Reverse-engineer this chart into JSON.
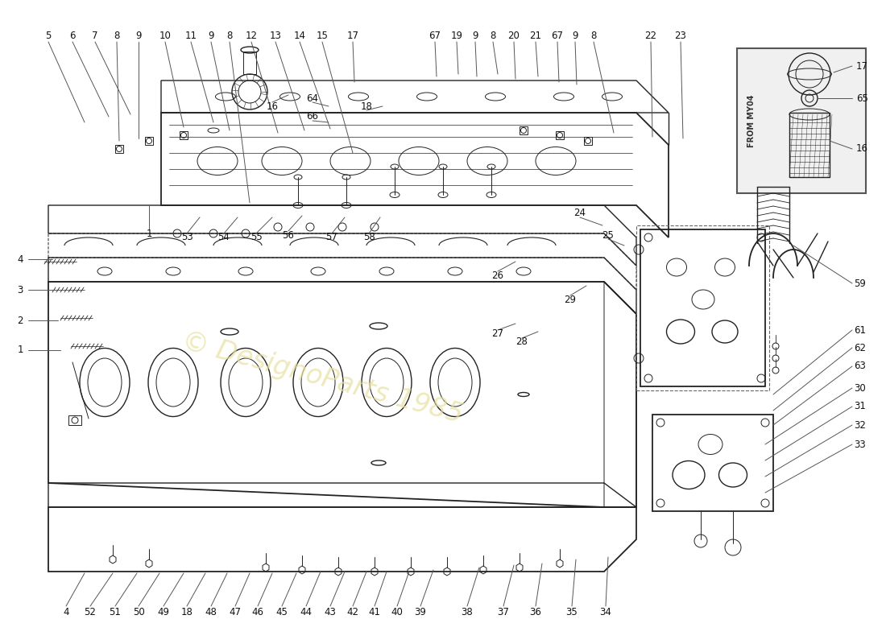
{
  "bg_color": "#ffffff",
  "line_color": "#222222",
  "label_color": "#111111",
  "watermark_color": "#e8e0a0",
  "from_my04_label": "FROM MY04",
  "top_labels": [
    [
      "5",
      60,
      755
    ],
    [
      "6",
      90,
      755
    ],
    [
      "7",
      118,
      755
    ],
    [
      "8",
      145,
      755
    ],
    [
      "9",
      172,
      755
    ],
    [
      "10",
      205,
      755
    ],
    [
      "11",
      237,
      755
    ],
    [
      "9",
      262,
      755
    ],
    [
      "8",
      285,
      755
    ],
    [
      "12",
      312,
      755
    ],
    [
      "13",
      342,
      755
    ],
    [
      "14",
      372,
      755
    ],
    [
      "15",
      400,
      755
    ],
    [
      "17",
      438,
      755
    ],
    [
      "67",
      540,
      755
    ],
    [
      "19",
      567,
      755
    ],
    [
      "9",
      590,
      755
    ],
    [
      "8",
      612,
      755
    ],
    [
      "20",
      638,
      755
    ],
    [
      "21",
      665,
      755
    ],
    [
      "67",
      692,
      755
    ],
    [
      "9",
      714,
      755
    ],
    [
      "8",
      737,
      755
    ],
    [
      "22",
      808,
      755
    ],
    [
      "23",
      845,
      755
    ]
  ],
  "bottom_labels": [
    [
      "4",
      82,
      40
    ],
    [
      "52",
      112,
      40
    ],
    [
      "51",
      143,
      40
    ],
    [
      "50",
      172,
      40
    ],
    [
      "49",
      203,
      40
    ],
    [
      "18",
      232,
      40
    ],
    [
      "48",
      262,
      40
    ],
    [
      "47",
      292,
      40
    ],
    [
      "46",
      320,
      40
    ],
    [
      "45",
      350,
      40
    ],
    [
      "44",
      380,
      40
    ],
    [
      "43",
      410,
      40
    ],
    [
      "42",
      438,
      40
    ],
    [
      "41",
      465,
      40
    ],
    [
      "40",
      493,
      40
    ],
    [
      "39",
      522,
      40
    ],
    [
      "38",
      580,
      40
    ],
    [
      "37",
      625,
      40
    ],
    [
      "36",
      665,
      40
    ],
    [
      "35",
      710,
      40
    ],
    [
      "34",
      752,
      40
    ]
  ],
  "left_labels": [
    [
      "4",
      25,
      478
    ],
    [
      "3",
      25,
      440
    ],
    [
      "2",
      25,
      402
    ],
    [
      "1",
      25,
      365
    ]
  ],
  "right_labels": [
    [
      "59",
      1068,
      448
    ],
    [
      "61",
      1068,
      390
    ],
    [
      "62",
      1068,
      368
    ],
    [
      "63",
      1068,
      345
    ],
    [
      "30",
      1068,
      318
    ],
    [
      "31",
      1068,
      295
    ],
    [
      "32",
      1068,
      272
    ],
    [
      "33",
      1068,
      248
    ]
  ],
  "inset_labels": [
    [
      "17",
      1090,
      628
    ],
    [
      "65",
      1090,
      598
    ],
    [
      "16",
      1090,
      555
    ]
  ]
}
